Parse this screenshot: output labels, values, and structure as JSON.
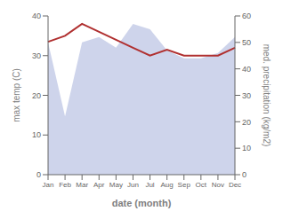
{
  "chart_data": {
    "type": "line",
    "categories": [
      "Jan",
      "Feb",
      "Mar",
      "Apr",
      "May",
      "Jun",
      "Jul",
      "Aug",
      "Sep",
      "Oct",
      "Nov",
      "Dec"
    ],
    "series": [
      {
        "type": "area",
        "axis": "y2",
        "color": "#c5cce8",
        "values": [
          50,
          22,
          50,
          52,
          48,
          57,
          55,
          47,
          44,
          44,
          46,
          52
        ]
      },
      {
        "type": "line",
        "color": "#b03030",
        "values": [
          33.5,
          35,
          38,
          36,
          34,
          32,
          30,
          31.5,
          30,
          30,
          30,
          32
        ]
      }
    ],
    "xlabel": "date (month)",
    "ylabel": "max temp (C)",
    "y2label": "med. precipitation (kg/m2)",
    "ylim": [
      0,
      40
    ],
    "yticks": [
      0,
      10,
      20,
      30,
      40
    ],
    "y2lim": [
      0,
      60
    ],
    "y2ticks": [
      0,
      10,
      20,
      30,
      40,
      50,
      60
    ],
    "grid": false
  }
}
